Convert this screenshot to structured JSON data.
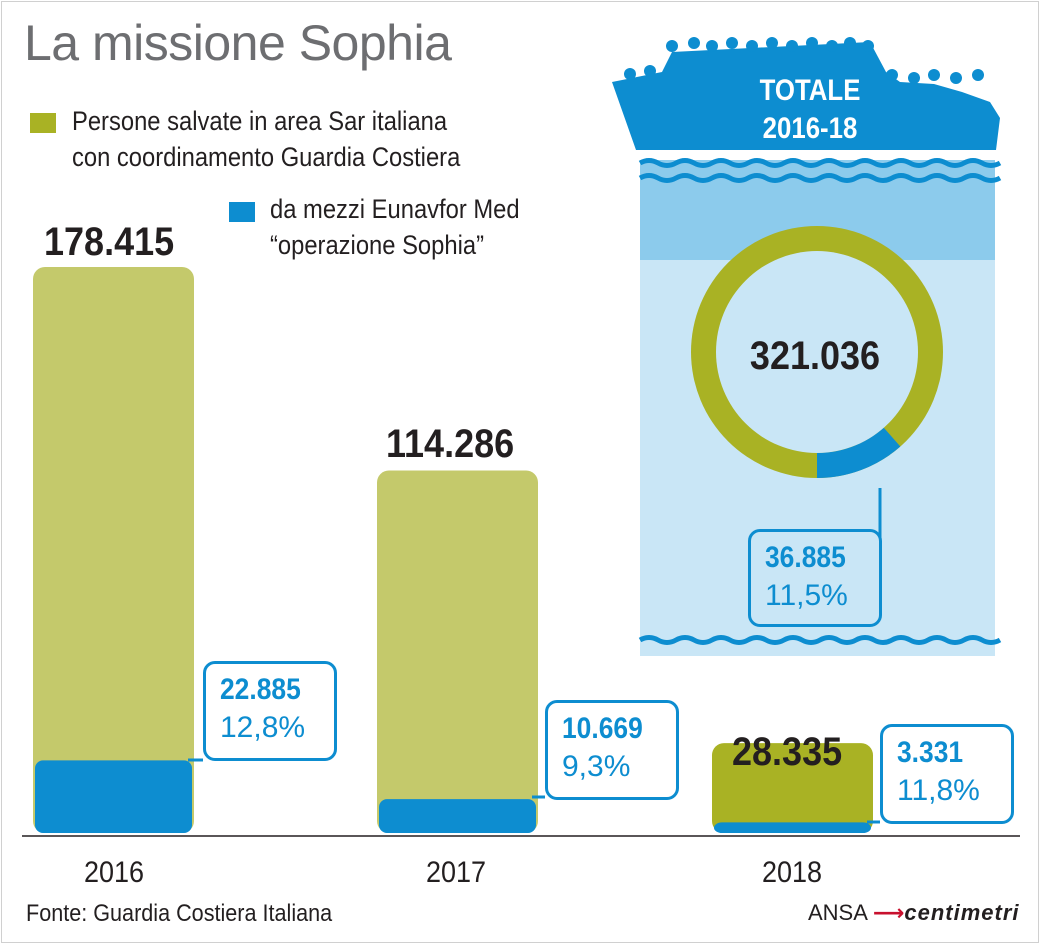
{
  "chart_data": {
    "type": "bar",
    "title": "La missione Sophia",
    "series": [
      {
        "name": "Persone salvate in area Sar italiana con coordinamento Guardia Costiera",
        "color": "#c4c96b",
        "values": [
          178415,
          114286,
          28335
        ],
        "labels": [
          "178.415",
          "114.286",
          "28.335"
        ]
      },
      {
        "name": "da mezzi Eunavfor Med “operazione Sophia”",
        "color": "#0d8dd0",
        "values": [
          22885,
          10669,
          3331
        ],
        "labels": [
          "22.885",
          "10.669",
          "3.331"
        ],
        "percent_labels": [
          "12,8%",
          "9,3%",
          "11,8%"
        ]
      }
    ],
    "categories": [
      "2016",
      "2017",
      "2018"
    ],
    "ylim": [
      0,
      178415
    ],
    "total": {
      "title_line1": "TOTALE",
      "title_line2": "2016-18",
      "value": 321036,
      "label": "321.036",
      "sophia_value": 36885,
      "sophia_label": "36.885",
      "sophia_percent": "11,5%",
      "sophia_fraction": 0.115
    }
  },
  "legend": {
    "green_line1": "Persone salvate in area Sar italiana",
    "green_line2": "con coordinamento Guardia Costiera",
    "blue_line1": "da mezzi Eunavfor Med",
    "blue_line2": "“operazione Sophia”"
  },
  "source": "Fonte: Guardia Costiera Italiana",
  "brand": {
    "agency": "ANSA",
    "product": "centimetri"
  },
  "colors": {
    "green": "#c4c96b",
    "olive": "#a9b224",
    "blue": "#0d8dd0",
    "sky": "#c9e6f6",
    "text": "#231f20",
    "title": "#6d6e71"
  }
}
